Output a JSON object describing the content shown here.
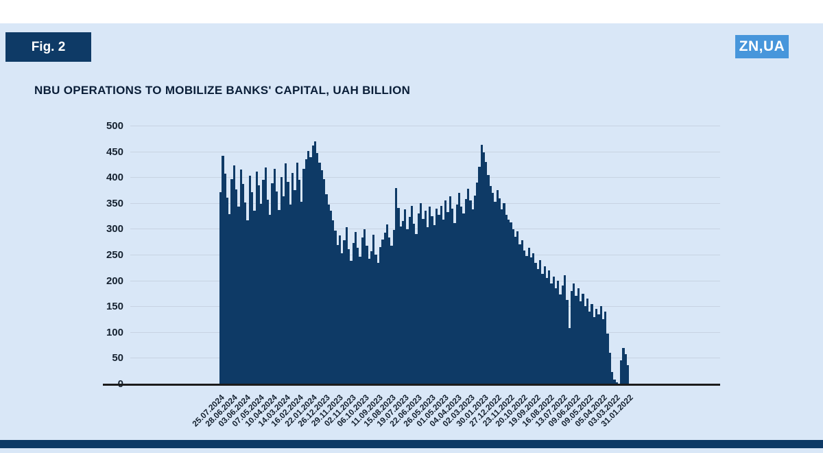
{
  "figure": {
    "label": "Fig. 2"
  },
  "logo": {
    "text": "ZN,UA"
  },
  "title": "NBU OPERATIONS TO MOBILIZE BANKS' CAPITAL, UAH BILLION",
  "colors": {
    "background": "#d9e7f7",
    "navy": "#0e3a66",
    "logo_blue": "#4796db",
    "grid": "#c7d3e2",
    "axis": "#1c1c1c",
    "text_dark": "#15212f"
  },
  "chart_data": {
    "type": "bar",
    "title": "NBU OPERATIONS TO MOBILIZE BANKS' CAPITAL, UAH BILLION",
    "unit": "UAH billion",
    "ylim": [
      0,
      500
    ],
    "yticks": [
      500,
      450,
      400,
      350,
      300,
      250,
      200,
      150,
      100,
      50,
      0
    ],
    "grid": true,
    "x_order": "newest date at left, oldest at right",
    "x_tick_labels": [
      "25.07.2024",
      "28.06.2024",
      "03.06.2024",
      "07.05.2024",
      "10.04.2024",
      "14.03.2024",
      "16.02.2024",
      "22.01.2024",
      "26.12.2023",
      "29.11.2023",
      "02.11.2023",
      "06.10.2023",
      "11.09.2023",
      "15.08.2023",
      "19.07.2023",
      "22.06.2023",
      "26.05.2023",
      "01.05.2023",
      "04.04.2023",
      "02.03.2023",
      "30.01.2023",
      "27.12.2022",
      "23.11.2022",
      "20.10.2022",
      "19.09.2022",
      "16.08.2022",
      "13.07.2022",
      "09.06.2022",
      "09.05.2022",
      "05.04.2022",
      "03.03.2022",
      "31.01.2022"
    ],
    "values_note": "daily bar heights sampled left-to-right, estimated from gridlines",
    "values": [
      372,
      443,
      408,
      362,
      330,
      398,
      424,
      378,
      344,
      416,
      388,
      352,
      318,
      404,
      372,
      336,
      412,
      386,
      350,
      396,
      420,
      358,
      328,
      390,
      417,
      374,
      338,
      402,
      364,
      428,
      392,
      348,
      410,
      376,
      430,
      396,
      354,
      418,
      436,
      452,
      440,
      463,
      471,
      448,
      430,
      415,
      398,
      368,
      348,
      336,
      318,
      298,
      270,
      288,
      254,
      279,
      304,
      262,
      240,
      274,
      295,
      264,
      248,
      284,
      301,
      268,
      244,
      258,
      290,
      252,
      236,
      266,
      281,
      294,
      310,
      284,
      268,
      299,
      381,
      342,
      306,
      316,
      339,
      301,
      324,
      346,
      311,
      291,
      331,
      351,
      321,
      336,
      304,
      344,
      326,
      309,
      341,
      329,
      346,
      319,
      356,
      334,
      364,
      341,
      312,
      349,
      371,
      344,
      331,
      359,
      379,
      356,
      339,
      366,
      391,
      421,
      464,
      449,
      431,
      406,
      384,
      371,
      354,
      376,
      361,
      339,
      351,
      329,
      319,
      314,
      301,
      286,
      296,
      271,
      279,
      259,
      249,
      264,
      246,
      254,
      236,
      224,
      241,
      214,
      229,
      206,
      221,
      196,
      209,
      186,
      201,
      174,
      191,
      211,
      164,
      109,
      181,
      196,
      171,
      186,
      161,
      176,
      151,
      166,
      141,
      156,
      131,
      146,
      136,
      151,
      126,
      141,
      99,
      61,
      24,
      9,
      4,
      2,
      46,
      71,
      59,
      37
    ]
  }
}
